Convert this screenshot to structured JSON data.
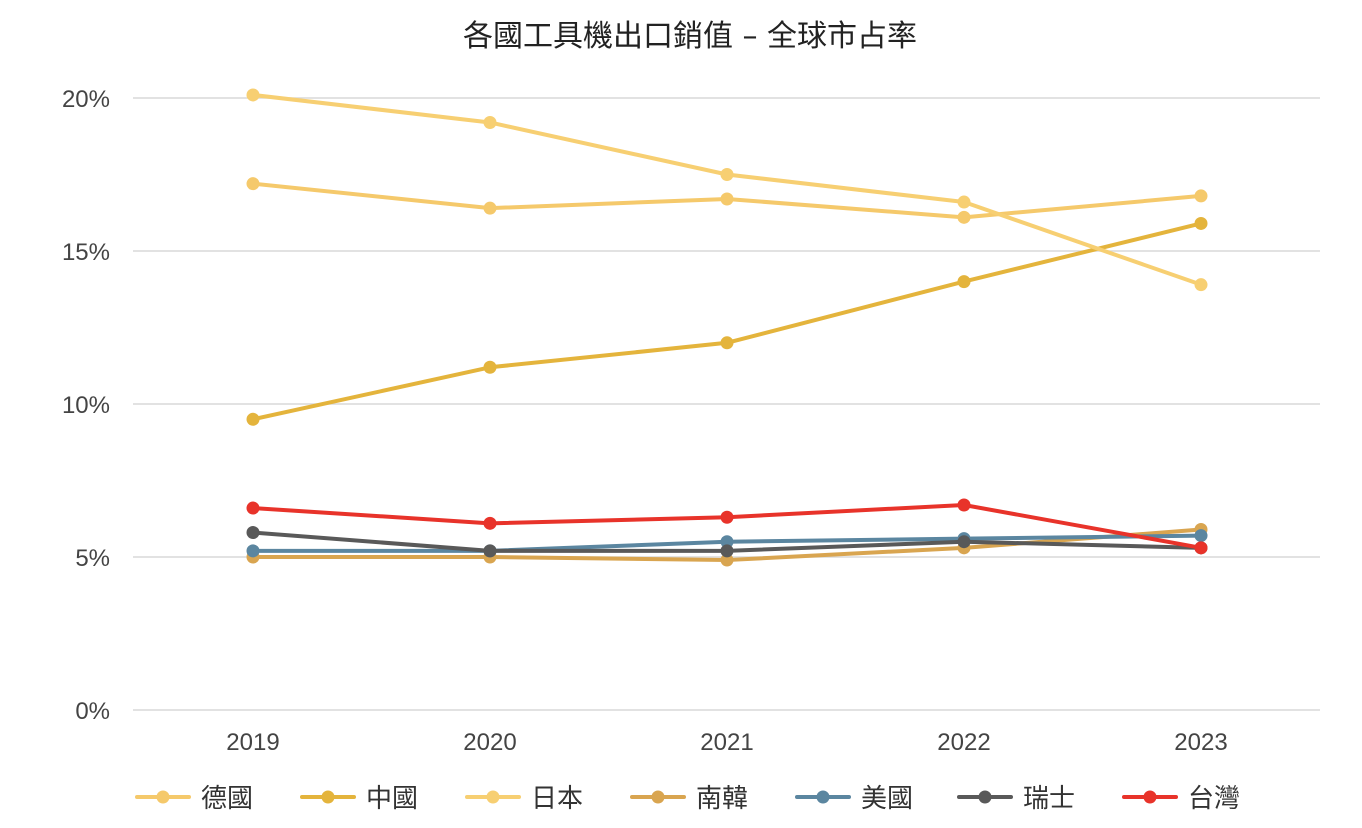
{
  "chart_data": {
    "type": "line",
    "title": "各國工具機出口銷值 – 全球市占率",
    "xlabel": "",
    "ylabel": "",
    "categories": [
      "2019",
      "2020",
      "2021",
      "2022",
      "2023"
    ],
    "y_ticks": [
      "0%",
      "5%",
      "10%",
      "15%",
      "20%"
    ],
    "ylim": [
      0,
      20
    ],
    "grid": true,
    "legend_position": "bottom",
    "series": [
      {
        "name": "德國",
        "color": "#f5c96b",
        "values": [
          17.2,
          16.4,
          16.7,
          16.1,
          16.8
        ]
      },
      {
        "name": "中國",
        "color": "#e4b43c",
        "values": [
          9.5,
          11.2,
          12.0,
          14.0,
          15.9
        ]
      },
      {
        "name": "日本",
        "color": "#f7cf72",
        "values": [
          20.1,
          19.2,
          17.5,
          16.6,
          13.9
        ]
      },
      {
        "name": "南韓",
        "color": "#d9a550",
        "values": [
          5.0,
          5.0,
          4.9,
          5.3,
          5.9
        ]
      },
      {
        "name": "美國",
        "color": "#5b86a0",
        "values": [
          5.2,
          5.2,
          5.5,
          5.6,
          5.7
        ]
      },
      {
        "name": "瑞士",
        "color": "#595959",
        "values": [
          5.8,
          5.2,
          5.2,
          5.5,
          5.3
        ]
      },
      {
        "name": "台灣",
        "color": "#e8332a",
        "values": [
          6.6,
          6.1,
          6.3,
          6.7,
          5.3
        ]
      }
    ]
  }
}
